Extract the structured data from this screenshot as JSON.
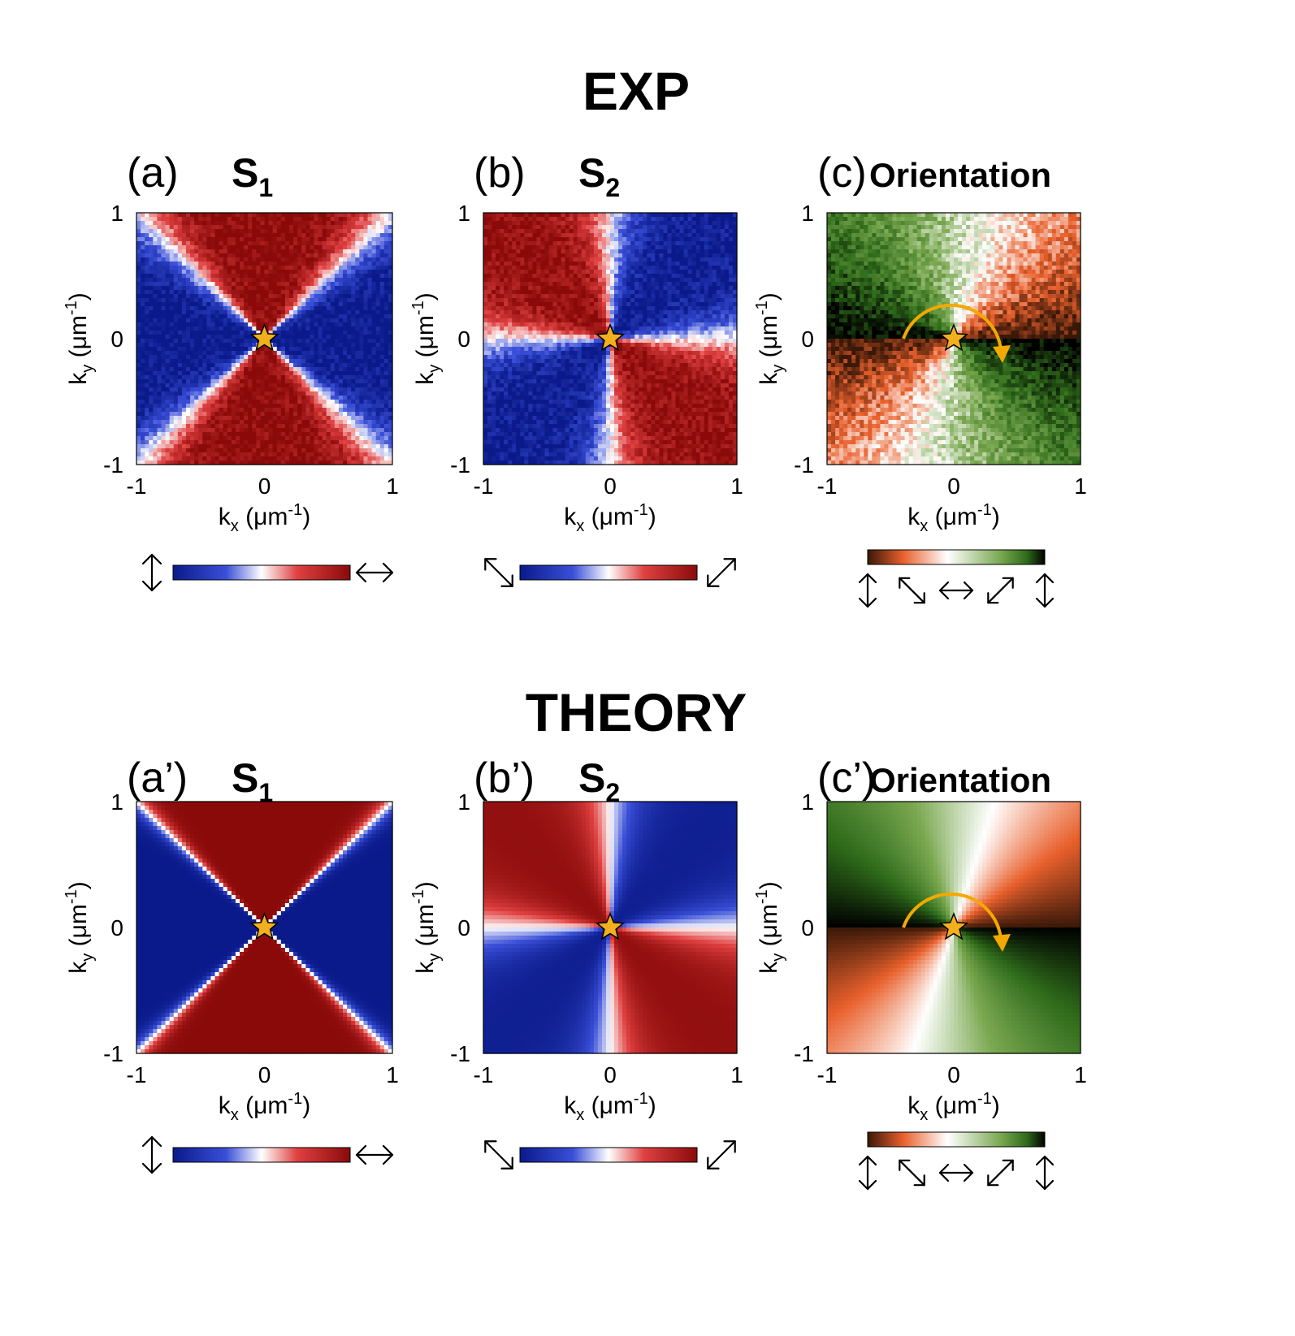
{
  "figure": {
    "sections": [
      {
        "title": "EXP"
      },
      {
        "title": "THEORY"
      }
    ],
    "panels": [
      {
        "label": "(a)",
        "name": "S",
        "name_sub": "1",
        "kind": "S1",
        "star": [
          0,
          0
        ],
        "arrow": false,
        "colorbar_left": "vertical-double-arrow",
        "colorbar_right": "horizontal-double-arrow"
      },
      {
        "label": "(b)",
        "name": "S",
        "name_sub": "2",
        "kind": "S2",
        "star": [
          0,
          0
        ],
        "arrow": false,
        "colorbar_left": "diagonal-down-arrow",
        "colorbar_right": "diagonal-up-arrow"
      },
      {
        "label": "(c)",
        "name": "Orientation",
        "name_sub": "",
        "kind": "orientation",
        "star": [
          0,
          0
        ],
        "arrow": true,
        "colorbar_left": "",
        "colorbar_right": ""
      },
      {
        "label": "(a’)",
        "name": "S",
        "name_sub": "1",
        "kind": "S1",
        "star": [
          0,
          0
        ],
        "arrow": false,
        "colorbar_left": "vertical-double-arrow",
        "colorbar_right": "horizontal-double-arrow"
      },
      {
        "label": "(b’)",
        "name": "S",
        "name_sub": "2",
        "kind": "S2",
        "star": [
          0,
          0
        ],
        "arrow": false,
        "colorbar_left": "diagonal-down-arrow",
        "colorbar_right": "diagonal-up-arrow"
      },
      {
        "label": "(c’)",
        "name": "Orientation",
        "name_sub": "",
        "kind": "orientation",
        "star": [
          0,
          0
        ],
        "arrow": true,
        "colorbar_left": "",
        "colorbar_right": ""
      }
    ]
  },
  "chart_data": {
    "type": "heatmap",
    "title": "",
    "xlabel": "k",
    "xlabel_sub": "x",
    "xlabel_units": "(μm",
    "xlabel_units_sup": "-1",
    "xlabel_units_close": ")",
    "ylabel": "k",
    "ylabel_sub": "y",
    "ylabel_units": "(μm",
    "ylabel_units_sup": "-1",
    "ylabel_units_close": ")",
    "xlim": [
      -1,
      1
    ],
    "ylim": [
      -1,
      1
    ],
    "xticks": [
      "-1",
      "0",
      "1"
    ],
    "yticks": [
      "1",
      "0",
      "-1"
    ],
    "s_colormap": [
      "#0a1a8a",
      "#3a4fd8",
      "#ffffff",
      "#e04040",
      "#8a0a0a"
    ],
    "orientation_colormap": [
      "#3a1808",
      "#e8602c",
      "#ffffff",
      "#7aa850",
      "#2e6a1a",
      "#000000"
    ],
    "orientation_colorbar_arrows": [
      "vertical-double-arrow",
      "diagonal-down-arrow",
      "horizontal-double-arrow",
      "diagonal-up-arrow",
      "vertical-double-arrow"
    ],
    "star_color": "#f2b01e",
    "arrow_color": "#f2a900"
  }
}
